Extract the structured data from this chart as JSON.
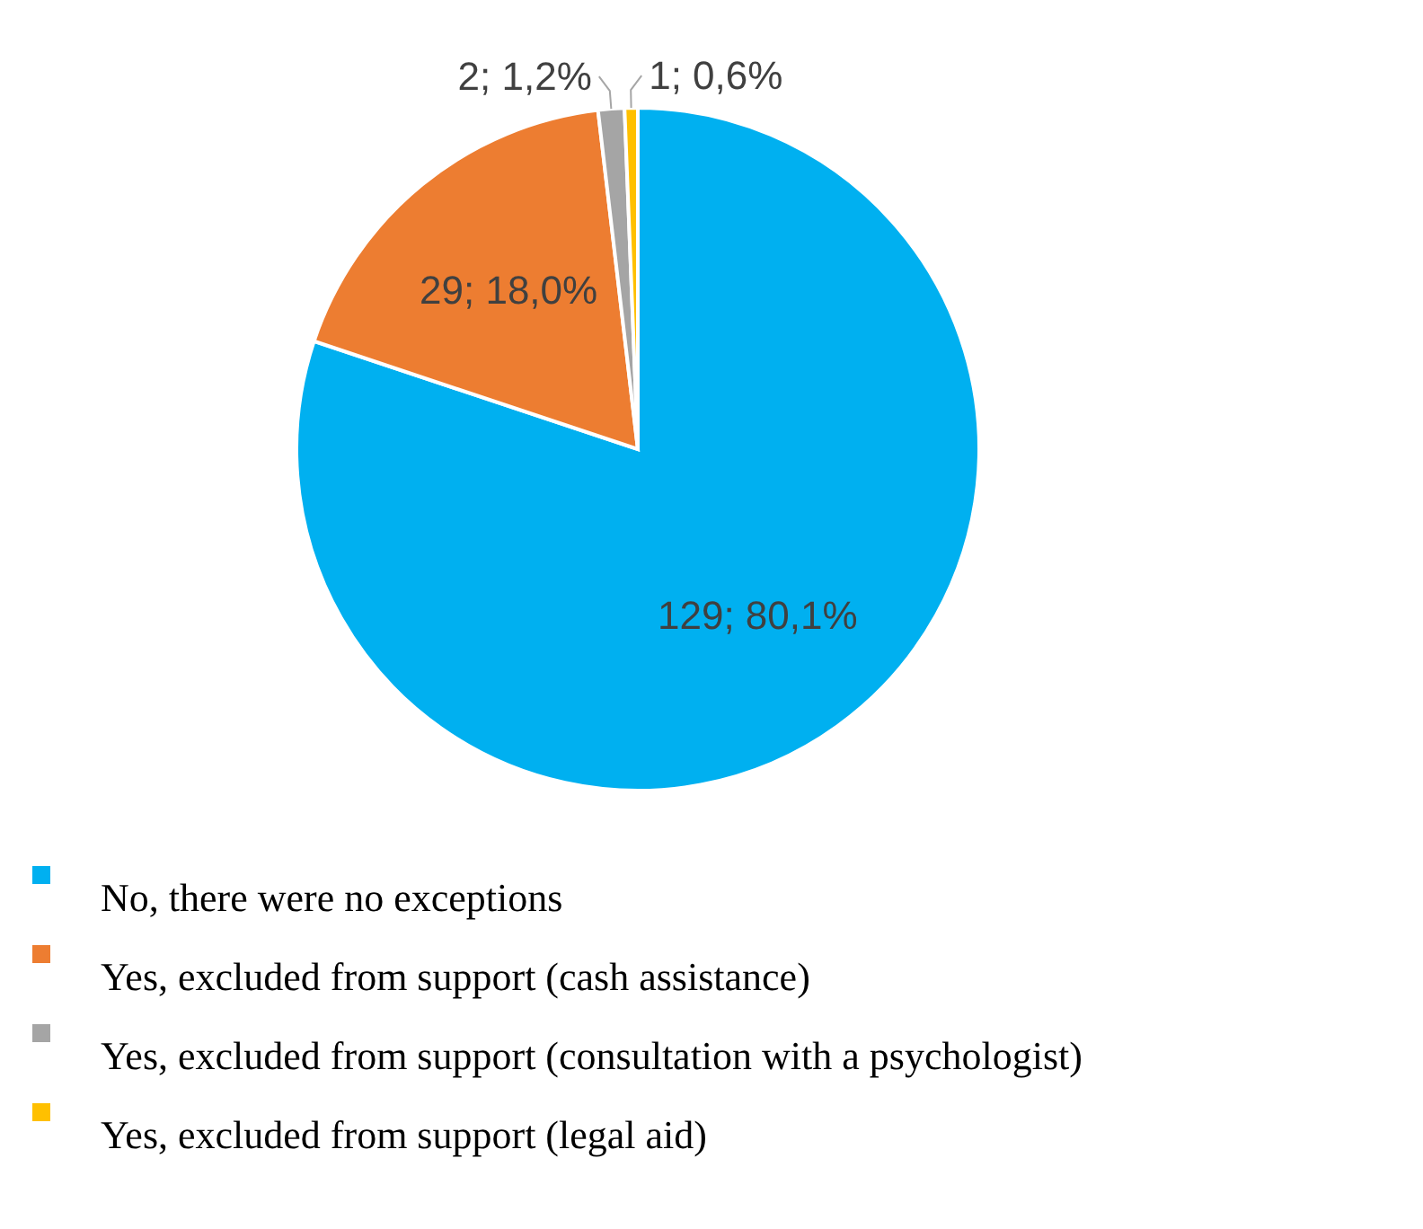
{
  "chart_data": {
    "type": "pie",
    "categories": [
      "No, there were no exceptions",
      "Yes, excluded from support (cash assistance)",
      "Yes, excluded from support (consultation with a psychologist)",
      "Yes, excluded from support (legal aid)"
    ],
    "values": [
      129,
      29,
      2,
      1
    ],
    "colors": [
      "#00b0f0",
      "#ed7d31",
      "#a5a5a5",
      "#ffc000"
    ],
    "value_labels": [
      "129; 80,1%",
      "29; 18,0%",
      "2; 1,2%",
      "1; 0,6%"
    ],
    "legend": "bottom"
  }
}
